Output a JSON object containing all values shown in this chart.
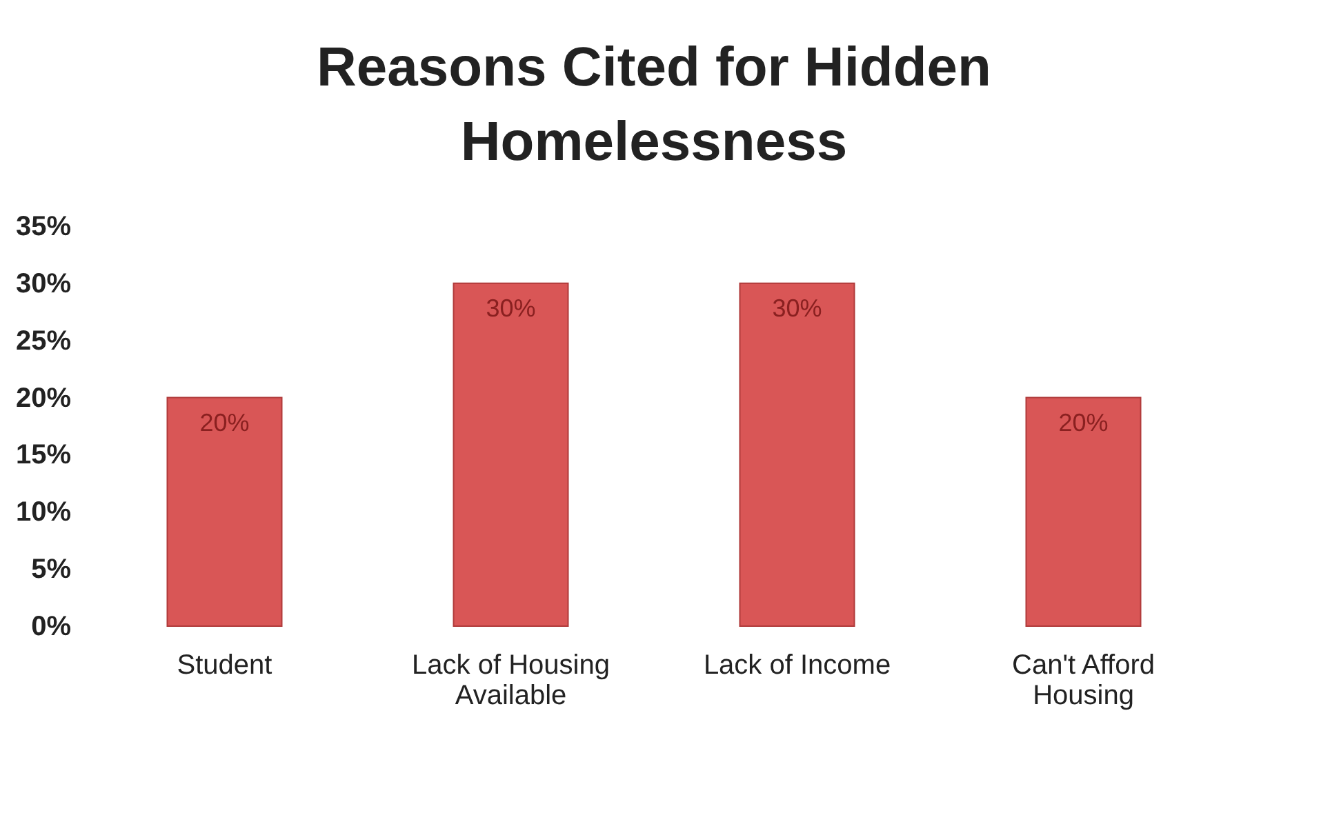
{
  "chart_data": {
    "type": "bar",
    "title": "Reasons Cited for Hidden Homelessness",
    "categories": [
      "Student",
      "Lack of Housing Available",
      "Lack of Income",
      "Can't Afford Housing"
    ],
    "values": [
      20,
      30,
      30,
      20
    ],
    "color": "#d95656",
    "value_labels": [
      "20%",
      "30%",
      "30%",
      "20%"
    ],
    "ylim": [
      0,
      35
    ],
    "yticks": [
      {
        "value": 0,
        "label": "0%"
      },
      {
        "value": 5,
        "label": "5%"
      },
      {
        "value": 10,
        "label": "10%"
      },
      {
        "value": 15,
        "label": "15%"
      },
      {
        "value": 20,
        "label": "20%"
      },
      {
        "value": 25,
        "label": "25%"
      },
      {
        "value": 30,
        "label": "30%"
      },
      {
        "value": 35,
        "label": "35%"
      }
    ],
    "grid": false
  }
}
